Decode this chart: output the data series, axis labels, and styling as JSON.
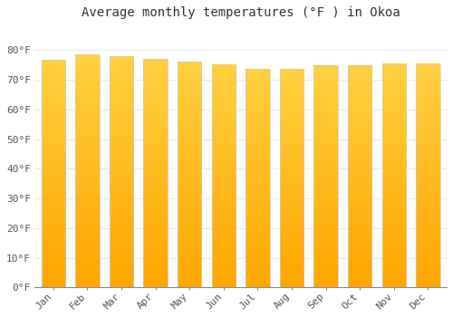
{
  "title": "Average monthly temperatures (°F ) in Okoa",
  "months": [
    "Jan",
    "Feb",
    "Mar",
    "Apr",
    "May",
    "Jun",
    "Jul",
    "Aug",
    "Sep",
    "Oct",
    "Nov",
    "Dec"
  ],
  "values": [
    76.5,
    78.3,
    77.5,
    76.8,
    75.9,
    74.8,
    73.4,
    73.4,
    74.5,
    74.5,
    75.3,
    75.3
  ],
  "bar_color_main": "#FFA500",
  "bar_color_top": "#FFD060",
  "background_color": "#FFFFFF",
  "grid_color": "#E8E8E8",
  "tick_label_color": "#555555",
  "title_color": "#333333",
  "ylim": [
    0,
    88
  ],
  "yticks": [
    0,
    10,
    20,
    30,
    40,
    50,
    60,
    70,
    80
  ],
  "ytick_labels": [
    "0°F",
    "10°F",
    "20°F",
    "30°F",
    "40°F",
    "50°F",
    "60°F",
    "70°F",
    "80°F"
  ],
  "title_fontsize": 10,
  "tick_fontsize": 8,
  "font_family": "monospace",
  "bar_width": 0.7,
  "n_gradient_steps": 100
}
